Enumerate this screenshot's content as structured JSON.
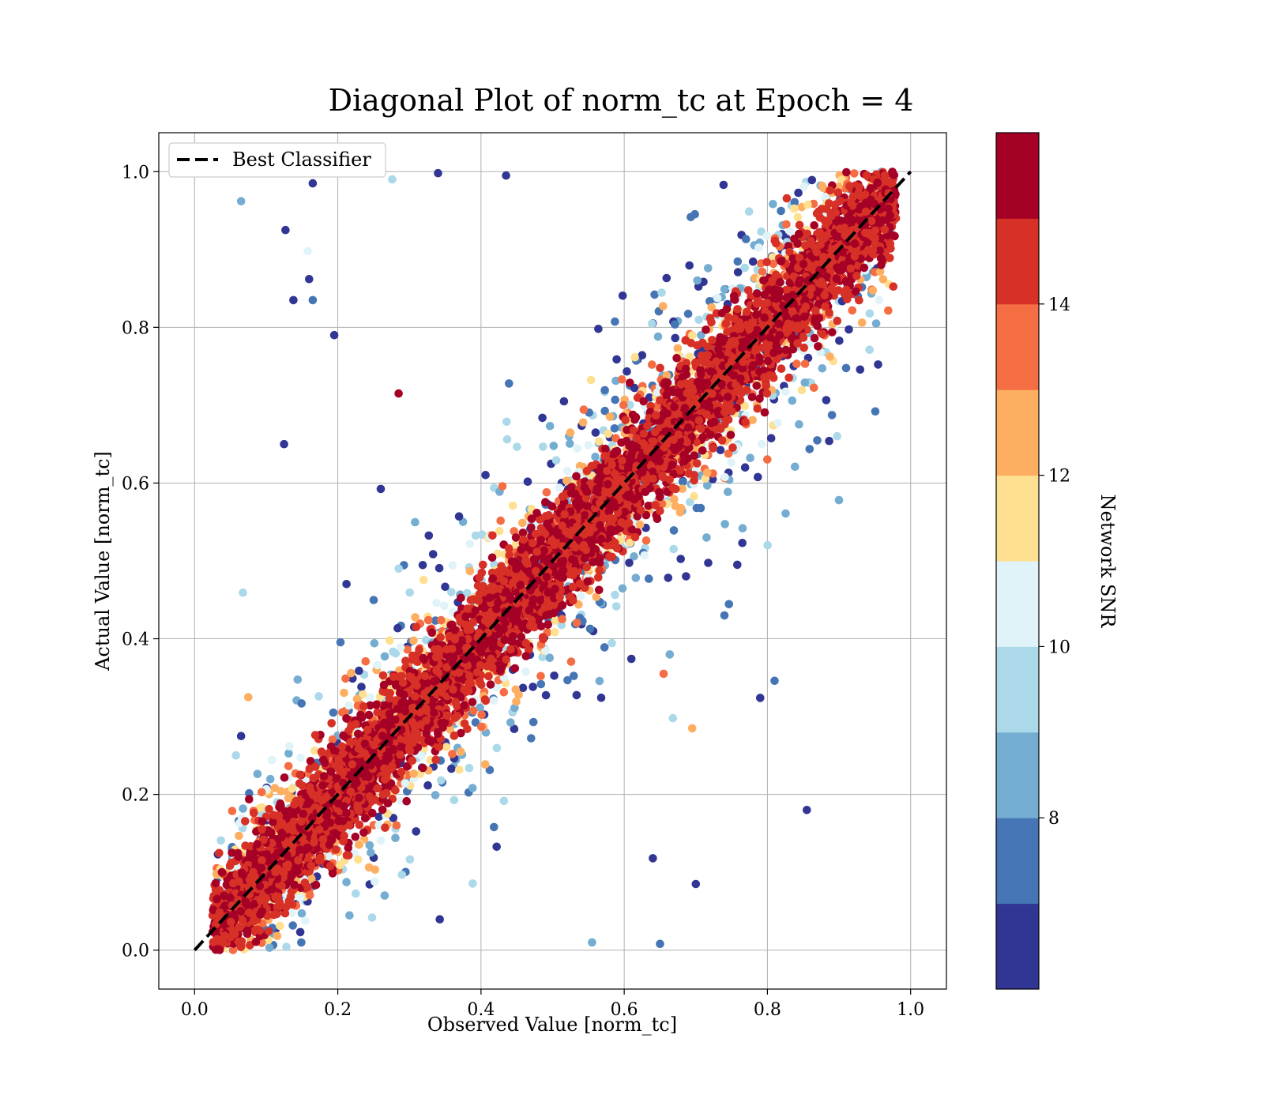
{
  "chart_data": {
    "type": "scatter",
    "title": "Diagonal Plot of norm_tc at Epoch = 4",
    "xlabel": "Observed Value [norm_tc]",
    "ylabel": "Actual Value [norm_tc]",
    "xlim": [
      -0.05,
      1.05
    ],
    "ylim": [
      -0.05,
      1.05
    ],
    "xticks": [
      0.0,
      0.2,
      0.4,
      0.6,
      0.8,
      1.0
    ],
    "yticks": [
      0.0,
      0.2,
      0.4,
      0.6,
      0.8,
      1.0
    ],
    "xtick_labels": [
      "0.0",
      "0.2",
      "0.4",
      "0.6",
      "0.8",
      "1.0"
    ],
    "ytick_labels": [
      "0.0",
      "0.2",
      "0.4",
      "0.6",
      "0.8",
      "1.0"
    ],
    "grid": true,
    "legend": {
      "placement": "top-left",
      "entries": [
        {
          "label": "Best Classifier",
          "style": "dashed",
          "color": "#000000"
        }
      ]
    },
    "reference_line": {
      "name": "Best Classifier",
      "x": [
        0.0,
        1.0
      ],
      "y": [
        0.0,
        1.0
      ]
    },
    "colorbar": {
      "label": "Network SNR",
      "range": [
        6,
        16
      ],
      "bins": 10,
      "ticks": [
        8,
        10,
        12,
        14
      ],
      "tick_labels": [
        "8",
        "10",
        "12",
        "14"
      ],
      "colors": [
        "#313695",
        "#4575b4",
        "#74add1",
        "#abd9e9",
        "#e0f3f8",
        "#fee090",
        "#fdae61",
        "#f46d43",
        "#d73027",
        "#a50026"
      ]
    },
    "points": [
      {
        "x": 0.065,
        "y": 0.962,
        "snr": 8.5
      },
      {
        "x": 0.127,
        "y": 0.925,
        "snr": 6.5
      },
      {
        "x": 0.158,
        "y": 0.898,
        "snr": 10.5
      },
      {
        "x": 0.16,
        "y": 0.862,
        "snr": 6.5
      },
      {
        "x": 0.165,
        "y": 0.835,
        "snr": 7.5
      },
      {
        "x": 0.138,
        "y": 0.835,
        "snr": 6.5
      },
      {
        "x": 0.165,
        "y": 0.985,
        "snr": 6.5
      },
      {
        "x": 0.195,
        "y": 0.79,
        "snr": 6.5
      },
      {
        "x": 0.125,
        "y": 0.65,
        "snr": 6.5
      },
      {
        "x": 0.285,
        "y": 0.715,
        "snr": 15.5
      },
      {
        "x": 0.276,
        "y": 0.99,
        "snr": 9.5
      },
      {
        "x": 0.34,
        "y": 0.998,
        "snr": 6.5
      },
      {
        "x": 0.435,
        "y": 0.995,
        "snr": 6.5
      },
      {
        "x": 0.9,
        "y": 0.578,
        "snr": 8.5
      },
      {
        "x": 0.855,
        "y": 0.18,
        "snr": 6.5
      },
      {
        "x": 0.79,
        "y": 0.324,
        "snr": 6.5
      },
      {
        "x": 0.81,
        "y": 0.346,
        "snr": 7.5
      },
      {
        "x": 0.655,
        "y": 0.355,
        "snr": 13.5
      },
      {
        "x": 0.695,
        "y": 0.285,
        "snr": 12.5
      },
      {
        "x": 0.668,
        "y": 0.298,
        "snr": 9.5
      },
      {
        "x": 0.65,
        "y": 0.008,
        "snr": 7.5
      },
      {
        "x": 0.7,
        "y": 0.085,
        "snr": 6.5
      },
      {
        "x": 0.64,
        "y": 0.118,
        "snr": 6.5
      },
      {
        "x": 0.555,
        "y": 0.01,
        "snr": 8.5
      },
      {
        "x": 0.075,
        "y": 0.325,
        "snr": 12.5
      },
      {
        "x": 0.065,
        "y": 0.275,
        "snr": 6.5
      },
      {
        "x": 0.74,
        "y": 0.43,
        "snr": 7.5
      },
      {
        "x": 0.765,
        "y": 0.523,
        "snr": 6.5
      },
      {
        "x": 0.758,
        "y": 0.495,
        "snr": 6.5
      },
      {
        "x": 0.715,
        "y": 0.53,
        "snr": 8.5
      }
    ]
  }
}
